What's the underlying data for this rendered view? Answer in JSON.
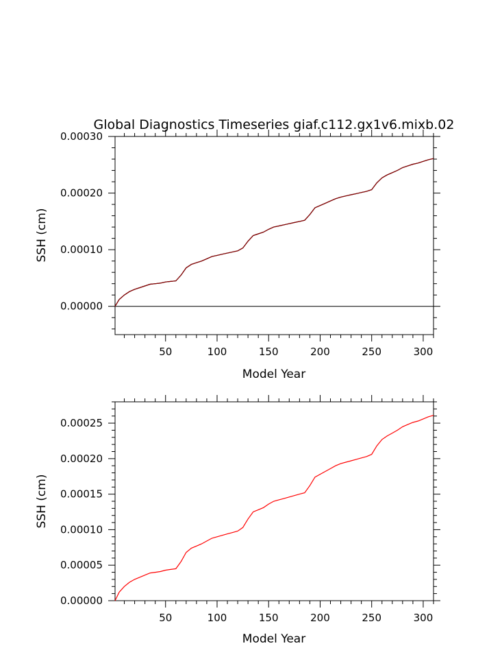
{
  "colors": {
    "series_black": "#000000",
    "series_dark_red": "#8b0000",
    "series_red": "#ff0000"
  },
  "chart_data": [
    {
      "type": "line",
      "title": "Global Diagnostics Timeseries giaf.c112.gx1v6.mixb.02",
      "xlabel": "Model Year",
      "ylabel": "SSH (cm)",
      "xlim": [
        1,
        310
      ],
      "ylim": [
        -5e-05,
        0.0003
      ],
      "xticks": [
        "50",
        "100",
        "150",
        "200",
        "250",
        "300"
      ],
      "yticks": [
        "0.00000",
        "0.00010",
        "0.00020",
        "0.00030"
      ],
      "zero_line": true,
      "series": [
        {
          "color": "#000000",
          "x": [
            1,
            5,
            10,
            15,
            20,
            25,
            30,
            35,
            40,
            45,
            50,
            55,
            60,
            65,
            70,
            75,
            80,
            85,
            90,
            95,
            100,
            105,
            110,
            115,
            120,
            125,
            130,
            135,
            140,
            145,
            150,
            155,
            160,
            165,
            170,
            175,
            180,
            185,
            190,
            195,
            200,
            205,
            210,
            215,
            220,
            225,
            230,
            235,
            240,
            245,
            250,
            255,
            260,
            265,
            270,
            275,
            280,
            285,
            290,
            295,
            300,
            305,
            310
          ],
          "y": [
            0.0,
            1.2e-05,
            2e-05,
            2.6e-05,
            3e-05,
            3.3e-05,
            3.6e-05,
            3.9e-05,
            4e-05,
            4.1e-05,
            4.3e-05,
            4.4e-05,
            4.5e-05,
            5.5e-05,
            6.8e-05,
            7.4e-05,
            7.7e-05,
            8e-05,
            8.4e-05,
            8.8e-05,
            9e-05,
            9.2e-05,
            9.4e-05,
            9.6e-05,
            9.8e-05,
            0.000103,
            0.000115,
            0.000125,
            0.000128,
            0.000131,
            0.000136,
            0.00014,
            0.000142,
            0.000144,
            0.000146,
            0.000148,
            0.00015,
            0.000152,
            0.000162,
            0.000174,
            0.000178,
            0.000182,
            0.000186,
            0.00019,
            0.000193,
            0.000195,
            0.000197,
            0.000199,
            0.000201,
            0.000203,
            0.000206,
            0.000218,
            0.000227,
            0.000232,
            0.000236,
            0.00024,
            0.000245,
            0.000248,
            0.000251,
            0.000253,
            0.000256,
            0.000259,
            0.000261
          ]
        },
        {
          "color": "#8b0000",
          "x": [
            1,
            5,
            10,
            15,
            20,
            25,
            30,
            35,
            40,
            45,
            50,
            55,
            60,
            65,
            70,
            75,
            80,
            85,
            90,
            95,
            100,
            105,
            110,
            115,
            120,
            125,
            130,
            135,
            140,
            145,
            150,
            155,
            160,
            165,
            170,
            175,
            180,
            185,
            190,
            195,
            200,
            205,
            210,
            215,
            220,
            225,
            230,
            235,
            240,
            245,
            250,
            255,
            260,
            265,
            270,
            275,
            280,
            285,
            290,
            295,
            300,
            305,
            310
          ],
          "y": [
            0.0,
            1.2e-05,
            2e-05,
            2.6e-05,
            3e-05,
            3.3e-05,
            3.6e-05,
            3.9e-05,
            4e-05,
            4.1e-05,
            4.3e-05,
            4.4e-05,
            4.5e-05,
            5.5e-05,
            6.8e-05,
            7.4e-05,
            7.7e-05,
            8e-05,
            8.4e-05,
            8.8e-05,
            9e-05,
            9.2e-05,
            9.4e-05,
            9.6e-05,
            9.8e-05,
            0.000103,
            0.000115,
            0.000125,
            0.000128,
            0.000131,
            0.000136,
            0.00014,
            0.000142,
            0.000144,
            0.000146,
            0.000148,
            0.00015,
            0.000152,
            0.000162,
            0.000174,
            0.000178,
            0.000182,
            0.000186,
            0.00019,
            0.000193,
            0.000195,
            0.000197,
            0.000199,
            0.000201,
            0.000203,
            0.000206,
            0.000218,
            0.000227,
            0.000232,
            0.000236,
            0.00024,
            0.000245,
            0.000248,
            0.000251,
            0.000253,
            0.000256,
            0.000259,
            0.000261
          ]
        }
      ]
    },
    {
      "type": "line",
      "title": "",
      "xlabel": "Model Year",
      "ylabel": "SSH (cm)",
      "xlim": [
        1,
        310
      ],
      "ylim": [
        0.0,
        0.00028
      ],
      "xticks": [
        "50",
        "100",
        "150",
        "200",
        "250",
        "300"
      ],
      "yticks": [
        "0.00000",
        "0.00005",
        "0.00010",
        "0.00015",
        "0.00020",
        "0.00025"
      ],
      "zero_line": false,
      "series": [
        {
          "color": "#ff0000",
          "x": [
            1,
            5,
            10,
            15,
            20,
            25,
            30,
            35,
            40,
            45,
            50,
            55,
            60,
            65,
            70,
            75,
            80,
            85,
            90,
            95,
            100,
            105,
            110,
            115,
            120,
            125,
            130,
            135,
            140,
            145,
            150,
            155,
            160,
            165,
            170,
            175,
            180,
            185,
            190,
            195,
            200,
            205,
            210,
            215,
            220,
            225,
            230,
            235,
            240,
            245,
            250,
            255,
            260,
            265,
            270,
            275,
            280,
            285,
            290,
            295,
            300,
            305,
            310
          ],
          "y": [
            0.0,
            1.2e-05,
            2e-05,
            2.6e-05,
            3e-05,
            3.3e-05,
            3.6e-05,
            3.9e-05,
            4e-05,
            4.1e-05,
            4.3e-05,
            4.4e-05,
            4.5e-05,
            5.5e-05,
            6.8e-05,
            7.4e-05,
            7.7e-05,
            8e-05,
            8.4e-05,
            8.8e-05,
            9e-05,
            9.2e-05,
            9.4e-05,
            9.6e-05,
            9.8e-05,
            0.000103,
            0.000115,
            0.000125,
            0.000128,
            0.000131,
            0.000136,
            0.00014,
            0.000142,
            0.000144,
            0.000146,
            0.000148,
            0.00015,
            0.000152,
            0.000162,
            0.000174,
            0.000178,
            0.000182,
            0.000186,
            0.00019,
            0.000193,
            0.000195,
            0.000197,
            0.000199,
            0.000201,
            0.000203,
            0.000206,
            0.000218,
            0.000227,
            0.000232,
            0.000236,
            0.00024,
            0.000245,
            0.000248,
            0.000251,
            0.000253,
            0.000256,
            0.000259,
            0.000261
          ]
        }
      ]
    }
  ]
}
